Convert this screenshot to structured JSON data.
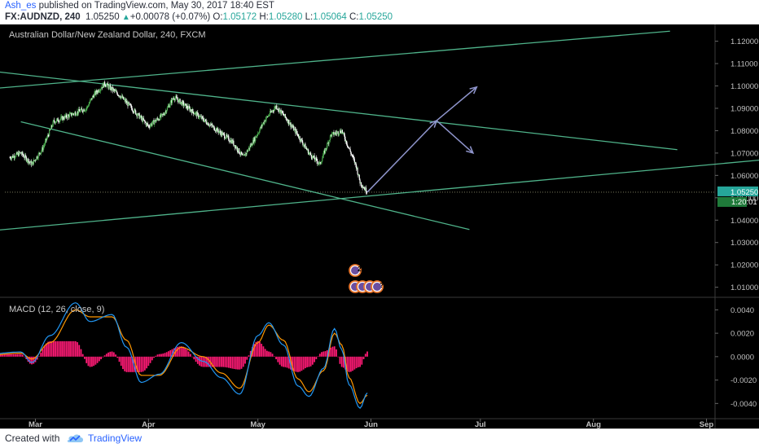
{
  "header": {
    "author": "Ash_es",
    "published_text": "published on TradingView.com, May 30, 2017 18:40 EST",
    "symbol": "FX:AUDNZD, 240",
    "last": "1.05250",
    "change_arrow": "▲",
    "change": "+0.00078 (+0.07%)",
    "o_label": "O:",
    "o_val": "1.05172",
    "h_label": "H:",
    "h_val": "1.05280",
    "l_label": "L:",
    "l_val": "1.05064",
    "c_label": "C:",
    "c_val": "1.05250"
  },
  "footer": {
    "created_with": "Created with",
    "brand": "TradingView",
    "logo_icon": "tradingview-cloud-icon"
  },
  "colors": {
    "background": "#000000",
    "trendline": "#4fb38a",
    "arrow": "#8f95cc",
    "up_candle": "#4caf50",
    "down_candle": "#ffffff",
    "price_tag": "#26a69a",
    "macd_line": "#2196f3",
    "signal_line": "#ff9800",
    "histogram": "#ff1a75",
    "axis_text": "#c0c0c0"
  },
  "chart_data": [
    {
      "type": "candlestick",
      "title": "Australian Dollar/New Zealand Dollar, 240, FXCM",
      "x_ticks": [
        "Mar",
        "Apr",
        "May",
        "Jun",
        "Jul",
        "Aug",
        "Sep"
      ],
      "y_ticks": [
        "1.12000",
        "1.11000",
        "1.10000",
        "1.09000",
        "1.08000",
        "1.07000",
        "1.06000",
        "1.05000",
        "1.04000",
        "1.03000",
        "1.02000",
        "1.01000"
      ],
      "ylim": [
        1.0055,
        1.1275
      ],
      "last_price": "1.05250",
      "countdown": "1:20:01",
      "price_path": [
        {
          "date": "2017-02-22",
          "price": 1.068
        },
        {
          "date": "2017-02-25",
          "price": 1.07
        },
        {
          "date": "2017-02-28",
          "price": 1.065
        },
        {
          "date": "2017-03-03",
          "price": 1.072
        },
        {
          "date": "2017-03-06",
          "price": 1.084
        },
        {
          "date": "2017-03-09",
          "price": 1.086
        },
        {
          "date": "2017-03-12",
          "price": 1.088
        },
        {
          "date": "2017-03-15",
          "price": 1.09
        },
        {
          "date": "2017-03-17",
          "price": 1.096
        },
        {
          "date": "2017-03-20",
          "price": 1.101
        },
        {
          "date": "2017-03-24",
          "price": 1.096
        },
        {
          "date": "2017-03-28",
          "price": 1.089
        },
        {
          "date": "2017-04-01",
          "price": 1.082
        },
        {
          "date": "2017-04-05",
          "price": 1.087
        },
        {
          "date": "2017-04-08",
          "price": 1.095
        },
        {
          "date": "2017-04-12",
          "price": 1.09
        },
        {
          "date": "2017-04-16",
          "price": 1.085
        },
        {
          "date": "2017-04-20",
          "price": 1.08
        },
        {
          "date": "2017-04-24",
          "price": 1.075
        },
        {
          "date": "2017-04-27",
          "price": 1.068
        },
        {
          "date": "2017-04-30",
          "price": 1.076
        },
        {
          "date": "2017-05-03",
          "price": 1.085
        },
        {
          "date": "2017-05-06",
          "price": 1.091
        },
        {
          "date": "2017-05-09",
          "price": 1.085
        },
        {
          "date": "2017-05-12",
          "price": 1.078
        },
        {
          "date": "2017-05-15",
          "price": 1.07
        },
        {
          "date": "2017-05-18",
          "price": 1.065
        },
        {
          "date": "2017-05-21",
          "price": 1.078
        },
        {
          "date": "2017-05-24",
          "price": 1.08
        },
        {
          "date": "2017-05-26",
          "price": 1.072
        },
        {
          "date": "2017-05-28",
          "price": 1.064
        },
        {
          "date": "2017-05-29",
          "price": 1.057
        },
        {
          "date": "2017-05-31",
          "price": 1.0525
        }
      ],
      "trendlines": [
        {
          "from": {
            "date": "2017-02-15",
            "price": 1.107
          },
          "to": {
            "date": "2017-08-24",
            "price": 1.0715
          }
        },
        {
          "from": {
            "date": "2017-02-25",
            "price": 1.084
          },
          "to": {
            "date": "2017-06-28",
            "price": 1.0358
          }
        },
        {
          "from": {
            "date": "2017-02-15",
            "price": 1.035
          },
          "to": {
            "date": "2017-09-30",
            "price": 1.069
          }
        },
        {
          "from": {
            "date": "2017-02-15",
            "price": 1.0985
          },
          "to": {
            "date": "2017-08-22",
            "price": 1.1245
          }
        }
      ],
      "projection_arrows": [
        {
          "from": {
            "date": "2017-05-31",
            "price": 1.0525
          },
          "to": {
            "date": "2017-06-19",
            "price": 1.0845
          }
        },
        {
          "from": {
            "date": "2017-06-19",
            "price": 1.0845
          },
          "to": {
            "date": "2017-06-30",
            "price": 1.0995
          }
        },
        {
          "from": {
            "date": "2017-06-19",
            "price": 1.0845
          },
          "to": {
            "date": "2017-06-29",
            "price": 1.07
          }
        }
      ],
      "event_markers": [
        {
          "text": "2"
        },
        {
          "text": "2"
        },
        {
          "text": "?"
        },
        {
          "text": "?"
        }
      ]
    },
    {
      "type": "line",
      "title": "MACD (12, 26, close, 9)",
      "y_ticks": [
        "0.0040",
        "0.0020",
        "0.0000",
        "-0.0020",
        "-0.0040"
      ],
      "ylim": [
        -0.0053,
        0.005
      ],
      "series": [
        {
          "key": "macd",
          "values": [
            {
              "date": "2017-02-15",
              "value": 0.0002
            },
            {
              "date": "2017-02-25",
              "value": 0.0004
            },
            {
              "date": "2017-02-28",
              "value": -0.0005
            },
            {
              "date": "2017-03-05",
              "value": 0.0018
            },
            {
              "date": "2017-03-12",
              "value": 0.0046
            },
            {
              "date": "2017-03-16",
              "value": 0.003
            },
            {
              "date": "2017-03-22",
              "value": 0.0036
            },
            {
              "date": "2017-03-26",
              "value": 0.0008
            },
            {
              "date": "2017-03-30",
              "value": -0.0022
            },
            {
              "date": "2017-04-04",
              "value": -0.0015
            },
            {
              "date": "2017-04-10",
              "value": 0.0012
            },
            {
              "date": "2017-04-16",
              "value": -0.0004
            },
            {
              "date": "2017-04-21",
              "value": -0.0018
            },
            {
              "date": "2017-04-26",
              "value": -0.0032
            },
            {
              "date": "2017-05-01",
              "value": 0.0018
            },
            {
              "date": "2017-05-04",
              "value": 0.0029
            },
            {
              "date": "2017-05-08",
              "value": 0.001
            },
            {
              "date": "2017-05-12",
              "value": -0.0025
            },
            {
              "date": "2017-05-15",
              "value": -0.0034
            },
            {
              "date": "2017-05-19",
              "value": -0.001
            },
            {
              "date": "2017-05-22",
              "value": 0.0024
            },
            {
              "date": "2017-05-24",
              "value": 0.0006
            },
            {
              "date": "2017-05-26",
              "value": -0.0024
            },
            {
              "date": "2017-05-29",
              "value": -0.0044
            },
            {
              "date": "2017-05-31",
              "value": -0.0031
            }
          ]
        },
        {
          "key": "signal",
          "values": [
            {
              "date": "2017-02-15",
              "value": 0.0001
            },
            {
              "date": "2017-02-25",
              "value": 0.0003
            },
            {
              "date": "2017-02-28",
              "value": -0.0002
            },
            {
              "date": "2017-03-05",
              "value": 0.0012
            },
            {
              "date": "2017-03-12",
              "value": 0.004
            },
            {
              "date": "2017-03-16",
              "value": 0.0034
            },
            {
              "date": "2017-03-22",
              "value": 0.0034
            },
            {
              "date": "2017-03-26",
              "value": 0.0014
            },
            {
              "date": "2017-03-30",
              "value": -0.0016
            },
            {
              "date": "2017-04-04",
              "value": -0.0016
            },
            {
              "date": "2017-04-10",
              "value": 0.0008
            },
            {
              "date": "2017-04-16",
              "value": 0.0
            },
            {
              "date": "2017-04-21",
              "value": -0.0014
            },
            {
              "date": "2017-04-26",
              "value": -0.0027
            },
            {
              "date": "2017-05-01",
              "value": 0.0012
            },
            {
              "date": "2017-05-04",
              "value": 0.0027
            },
            {
              "date": "2017-05-08",
              "value": 0.0014
            },
            {
              "date": "2017-05-12",
              "value": -0.0019
            },
            {
              "date": "2017-05-15",
              "value": -0.003
            },
            {
              "date": "2017-05-19",
              "value": -0.0012
            },
            {
              "date": "2017-05-22",
              "value": 0.002
            },
            {
              "date": "2017-05-24",
              "value": 0.001
            },
            {
              "date": "2017-05-26",
              "value": -0.0018
            },
            {
              "date": "2017-05-29",
              "value": -0.004
            },
            {
              "date": "2017-05-31",
              "value": -0.0033
            }
          ]
        }
      ]
    }
  ]
}
